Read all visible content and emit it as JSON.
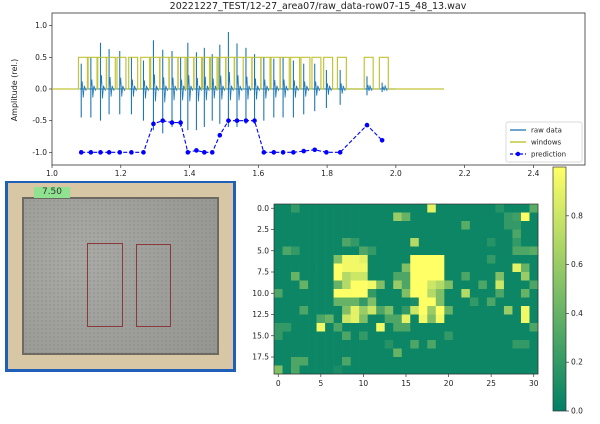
{
  "chart_data": [
    {
      "type": "line",
      "title": "20221227_TEST/12-27_area07/raw_data-row07-15_48_13.wav",
      "xlabel": "",
      "ylabel": "Amplitude (rel.)",
      "xlim": [
        1.0,
        2.55
      ],
      "ylim": [
        -1.2,
        1.2
      ],
      "xticks": [
        "1.0",
        "1.2",
        "1.4",
        "1.6",
        "1.8",
        "2.0",
        "2.2",
        "2.4"
      ],
      "yticks": [
        "-1.0",
        "-0.5",
        "0.0",
        "0.5",
        "1.0"
      ],
      "grid": false,
      "legend_position": "lower-right",
      "series": [
        {
          "name": "raw data",
          "color": "#1f77b4",
          "style": "spikes",
          "times": [
            1.085,
            1.113,
            1.141,
            1.166,
            1.197,
            1.231,
            1.266,
            1.295,
            1.322,
            1.349,
            1.374,
            1.395,
            1.42,
            1.443,
            1.466,
            1.488,
            1.513,
            1.538,
            1.564,
            1.589,
            1.616,
            1.645,
            1.672,
            1.702,
            1.732,
            1.764,
            1.798,
            1.838,
            1.916,
            1.96
          ],
          "peak_pos": [
            0.4,
            0.5,
            0.73,
            0.63,
            0.6,
            0.5,
            0.45,
            0.77,
            0.62,
            0.6,
            0.5,
            0.73,
            0.58,
            0.65,
            0.55,
            0.7,
            0.9,
            0.72,
            0.65,
            0.55,
            0.5,
            0.48,
            0.5,
            0.45,
            0.4,
            0.4,
            0.3,
            0.3,
            0.2,
            0.1
          ],
          "peak_neg": [
            -0.45,
            -0.45,
            -0.5,
            -0.4,
            -0.4,
            -0.4,
            -0.5,
            -0.65,
            -0.7,
            -0.6,
            -0.6,
            -0.65,
            -0.65,
            -0.6,
            -0.5,
            -0.55,
            -0.6,
            -0.6,
            -0.55,
            -0.55,
            -0.5,
            -0.45,
            -0.45,
            -0.45,
            -0.4,
            -0.35,
            -0.3,
            -0.25,
            -0.1,
            -0.05
          ]
        },
        {
          "name": "windows",
          "color": "#bcbd22",
          "style": "step",
          "window_starts": [
            1.077,
            1.105,
            1.133,
            1.158,
            1.189,
            1.223,
            1.258,
            1.287,
            1.314,
            1.341,
            1.366,
            1.387,
            1.412,
            1.435,
            1.458,
            1.48,
            1.505,
            1.53,
            1.556,
            1.581,
            1.608,
            1.637,
            1.664,
            1.694,
            1.724,
            1.756,
            1.79,
            1.83,
            1.908,
            1.952
          ],
          "window_width": 0.026,
          "window_height": 0.5,
          "x_start": 1.0,
          "x_end": 2.14
        },
        {
          "name": "prediction",
          "color": "#0000ff",
          "style": "dashed-markers",
          "x": [
            1.085,
            1.113,
            1.141,
            1.166,
            1.197,
            1.231,
            1.266,
            1.295,
            1.322,
            1.349,
            1.374,
            1.395,
            1.42,
            1.443,
            1.466,
            1.488,
            1.513,
            1.538,
            1.564,
            1.589,
            1.616,
            1.645,
            1.672,
            1.702,
            1.732,
            1.764,
            1.798,
            1.838,
            1.916,
            1.96
          ],
          "y": [
            -1,
            -1,
            -1,
            -1,
            -1,
            -1,
            -1,
            -0.55,
            -0.5,
            -0.53,
            -0.53,
            -1,
            -0.97,
            -1,
            -1,
            -0.73,
            -0.5,
            -0.5,
            -0.5,
            -0.5,
            -1,
            -1,
            -1,
            -1,
            -0.98,
            -0.96,
            -1,
            -1,
            -0.57,
            -0.81
          ]
        }
      ]
    },
    {
      "type": "heatmap",
      "colormap": "summer",
      "vmin": 0.0,
      "vmax": 1.0,
      "xticks": [
        "0",
        "5",
        "10",
        "15",
        "20",
        "25",
        "30"
      ],
      "yticks": [
        "0.0",
        "2.5",
        "5.0",
        "7.5",
        "10.0",
        "12.5",
        "15.0",
        "17.5"
      ],
      "colorbar_ticks": [
        "0.0",
        "0.2",
        "0.4",
        "0.6",
        "0.8"
      ],
      "values": [
        [
          0.05,
          0.05,
          0.2,
          0.05,
          0.05,
          0.05,
          0.05,
          0.05,
          0.05,
          0.05,
          0.05,
          0.05,
          0.05,
          0.05,
          0.05,
          0.05,
          0.05,
          0.05,
          0.9,
          0.05,
          0.05,
          0.05,
          0.05,
          0.05,
          0.05,
          0.05,
          0.15,
          0.05,
          0.05,
          0.05,
          0.35
        ],
        [
          0.05,
          0.05,
          0.05,
          0.05,
          0.05,
          0.05,
          0.05,
          0.05,
          0.05,
          0.05,
          0.05,
          0.05,
          0.05,
          0.05,
          0.6,
          0.4,
          0.05,
          0.05,
          0.05,
          0.05,
          0.05,
          0.05,
          0.05,
          0.05,
          0.05,
          0.05,
          0.05,
          0.2,
          0.25,
          1.0,
          0.05
        ],
        [
          0.05,
          0.05,
          0.05,
          0.05,
          0.05,
          0.05,
          0.05,
          0.05,
          0.05,
          0.05,
          0.05,
          0.05,
          0.05,
          0.05,
          0.05,
          0.05,
          0.05,
          0.05,
          0.05,
          0.05,
          0.05,
          0.05,
          0.35,
          0.05,
          0.05,
          0.05,
          0.05,
          0.2,
          0.2,
          0.05,
          0.05
        ],
        [
          0.05,
          0.05,
          0.05,
          0.05,
          0.05,
          0.05,
          0.05,
          0.05,
          0.05,
          0.05,
          0.05,
          0.05,
          0.05,
          0.05,
          0.05,
          0.05,
          0.05,
          0.05,
          0.05,
          0.05,
          0.05,
          0.05,
          0.05,
          0.05,
          0.05,
          0.05,
          0.05,
          0.05,
          0.3,
          0.05,
          0.05
        ],
        [
          0.05,
          0.05,
          0.05,
          0.05,
          0.05,
          0.05,
          0.05,
          0.05,
          0.3,
          0.2,
          0.05,
          0.05,
          0.05,
          0.05,
          0.05,
          0.05,
          0.7,
          0.05,
          0.05,
          0.05,
          0.05,
          0.05,
          0.05,
          0.05,
          0.05,
          0.15,
          0.05,
          0.05,
          0.2,
          0.05,
          0.05
        ],
        [
          0.05,
          0.3,
          0.2,
          0.05,
          0.05,
          0.05,
          0.05,
          0.05,
          0.05,
          0.05,
          0.3,
          0.2,
          0.05,
          0.05,
          0.05,
          0.05,
          0.05,
          0.05,
          0.05,
          0.05,
          0.05,
          0.05,
          0.05,
          0.05,
          0.05,
          0.05,
          0.05,
          0.05,
          0.3,
          0.3,
          0.35
        ],
        [
          0.05,
          0.05,
          0.05,
          0.05,
          0.05,
          0.05,
          0.05,
          0.5,
          0.95,
          0.95,
          0.9,
          0.05,
          0.05,
          0.05,
          0.05,
          0.05,
          1.0,
          1.0,
          1.0,
          1.0,
          0.05,
          0.05,
          0.05,
          0.05,
          0.05,
          0.2,
          0.05,
          0.05,
          0.05,
          0.05,
          0.05
        ],
        [
          0.05,
          0.05,
          0.05,
          0.05,
          0.05,
          0.05,
          0.05,
          1.0,
          0.95,
          0.95,
          0.95,
          0.05,
          0.05,
          0.05,
          0.05,
          0.5,
          1.0,
          1.0,
          1.0,
          1.0,
          0.05,
          0.05,
          0.05,
          0.05,
          0.05,
          0.05,
          0.05,
          0.05,
          0.9,
          0.4,
          0.05
        ],
        [
          0.05,
          0.05,
          0.4,
          0.05,
          0.05,
          0.05,
          0.05,
          1.0,
          0.7,
          0.8,
          0.8,
          0.05,
          0.05,
          0.05,
          0.3,
          0.3,
          1.0,
          1.0,
          1.0,
          1.0,
          0.05,
          0.05,
          0.3,
          0.05,
          0.05,
          0.05,
          0.5,
          0.05,
          0.05,
          0.6,
          0.05
        ],
        [
          0.05,
          0.05,
          0.05,
          0.4,
          0.05,
          0.05,
          0.05,
          0.4,
          0.7,
          1.0,
          1.0,
          0.95,
          0.5,
          0.05,
          0.6,
          0.3,
          1.0,
          1.0,
          0.8,
          0.7,
          0.5,
          0.05,
          0.05,
          0.05,
          0.3,
          0.05,
          0.8,
          0.05,
          0.05,
          0.05,
          0.3
        ],
        [
          0.3,
          0.05,
          0.05,
          0.05,
          0.05,
          0.05,
          0.05,
          1.0,
          1.0,
          1.0,
          1.0,
          0.2,
          0.05,
          0.05,
          0.05,
          0.5,
          1.0,
          1.0,
          0.7,
          0.5,
          0.05,
          0.05,
          0.7,
          0.05,
          0.05,
          0.05,
          0.3,
          0.05,
          0.05,
          0.4,
          0.05
        ],
        [
          0.05,
          0.05,
          0.05,
          0.05,
          0.05,
          0.05,
          0.05,
          0.4,
          0.4,
          0.4,
          0.2,
          0.5,
          0.05,
          0.05,
          0.05,
          0.05,
          0.1,
          1.0,
          1.0,
          0.5,
          0.05,
          0.05,
          0.05,
          0.2,
          0.05,
          0.3,
          0.05,
          0.05,
          0.05,
          0.05,
          0.05
        ],
        [
          0.05,
          0.05,
          0.05,
          0.3,
          0.05,
          0.05,
          0.05,
          0.05,
          0.5,
          0.9,
          0.6,
          0.8,
          0.3,
          0.5,
          0.05,
          0.2,
          0.8,
          1.0,
          0.6,
          1.0,
          0.4,
          0.05,
          0.05,
          0.05,
          0.05,
          0.05,
          0.05,
          0.6,
          0.05,
          0.95,
          0.05
        ],
        [
          0.05,
          0.05,
          0.05,
          0.05,
          0.05,
          0.3,
          0.4,
          0.05,
          0.8,
          0.9,
          0.5,
          0.05,
          0.05,
          0.3,
          0.3,
          0.9,
          0.05,
          0.95,
          0.5,
          0.95,
          0.05,
          0.05,
          0.05,
          0.05,
          0.05,
          0.05,
          0.05,
          0.05,
          0.05,
          0.95,
          0.05
        ],
        [
          0.2,
          0.2,
          0.05,
          0.05,
          0.05,
          0.95,
          0.05,
          0.3,
          0.05,
          0.05,
          0.05,
          0.05,
          0.95,
          0.05,
          0.3,
          0.3,
          0.05,
          0.05,
          0.05,
          0.05,
          0.05,
          0.05,
          0.05,
          0.05,
          0.05,
          0.05,
          0.05,
          0.05,
          0.05,
          0.05,
          0.3
        ],
        [
          0.2,
          0.05,
          0.05,
          0.05,
          0.05,
          0.05,
          0.05,
          0.05,
          0.3,
          0.05,
          0.2,
          0.05,
          0.05,
          0.05,
          0.05,
          0.05,
          0.05,
          0.05,
          0.05,
          0.05,
          0.2,
          0.05,
          0.05,
          0.05,
          0.05,
          0.05,
          0.05,
          0.05,
          0.05,
          0.05,
          0.05
        ],
        [
          0.05,
          0.05,
          0.05,
          0.05,
          0.05,
          0.05,
          0.05,
          0.05,
          0.05,
          0.05,
          0.05,
          0.05,
          0.05,
          0.15,
          0.05,
          0.05,
          0.3,
          0.05,
          0.3,
          0.05,
          0.05,
          0.05,
          0.05,
          0.05,
          0.05,
          0.05,
          0.05,
          0.05,
          0.2,
          0.2,
          0.05
        ],
        [
          0.05,
          0.05,
          0.05,
          0.05,
          0.05,
          0.05,
          0.05,
          0.05,
          0.05,
          0.05,
          0.05,
          0.05,
          0.05,
          0.05,
          0.4,
          0.05,
          0.05,
          0.05,
          0.05,
          0.05,
          0.05,
          0.05,
          0.05,
          0.05,
          0.05,
          0.05,
          0.05,
          0.05,
          0.05,
          0.05,
          0.05
        ],
        [
          0.05,
          0.05,
          0.3,
          0.3,
          0.05,
          0.05,
          0.05,
          0.05,
          0.3,
          0.05,
          0.05,
          0.05,
          0.05,
          0.05,
          0.05,
          0.05,
          0.05,
          0.05,
          0.05,
          0.05,
          0.05,
          0.05,
          0.05,
          0.05,
          0.05,
          0.05,
          0.05,
          0.05,
          0.05,
          0.05,
          0.05
        ],
        [
          0.5,
          0.05,
          0.3,
          0.05,
          0.05,
          0.05,
          0.05,
          0.1,
          0.05,
          0.05,
          0.05,
          0.05,
          0.05,
          0.05,
          0.05,
          0.05,
          0.05,
          0.05,
          0.05,
          0.05,
          0.05,
          0.05,
          0.05,
          0.05,
          0.05,
          0.05,
          0.05,
          0.05,
          0.05,
          0.05,
          0.05
        ]
      ]
    }
  ],
  "photo": {
    "label": "7.50"
  }
}
